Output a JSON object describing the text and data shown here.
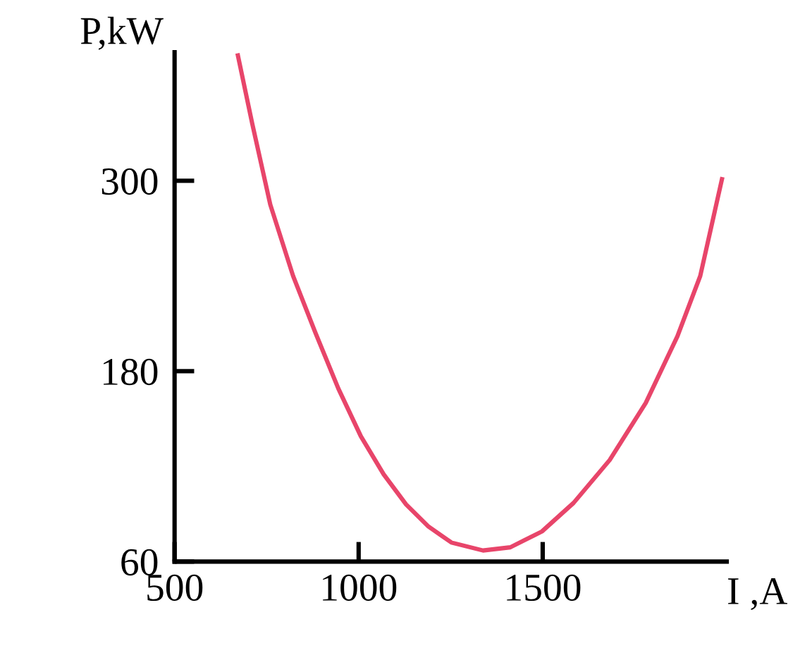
{
  "chart_data": {
    "type": "line",
    "xlabel": "I ,A",
    "ylabel": "P,kW",
    "x": [
      672,
      711,
      760,
      822,
      883,
      945,
      1006,
      1068,
      1129,
      1190,
      1252,
      1338,
      1412,
      1498,
      1584,
      1682,
      1780,
      1866,
      1928,
      1987
    ],
    "series": [
      {
        "color": "#e8456a",
        "values": [
          379,
          336,
          285,
          240,
          204,
          169,
          139,
          115,
          96,
          82,
          72,
          67,
          69,
          79,
          97,
          124,
          160,
          202,
          240,
          301
        ]
      }
    ],
    "xlim": [
      500,
      2000
    ],
    "ylim": [
      60,
      381
    ],
    "xticks": [
      500,
      1000,
      1500
    ],
    "yticks": [
      60,
      180,
      300
    ],
    "grid": false,
    "legend": false,
    "marker": "none",
    "line_style": "solid"
  }
}
